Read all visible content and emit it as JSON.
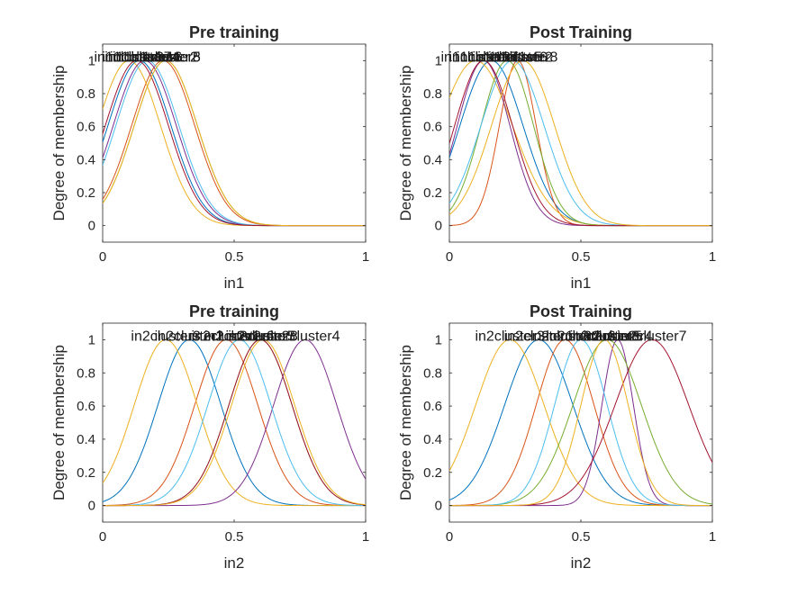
{
  "colors": [
    "#0072BD",
    "#D95319",
    "#EDB120",
    "#7E2F8E",
    "#77AC30",
    "#4DBEEE",
    "#A2142F"
  ],
  "chart_data": [
    {
      "type": "line",
      "title": "Pre training",
      "xlabel": "in1",
      "ylabel": "Degree of membership",
      "xlim": [
        0,
        1
      ],
      "ylim": [
        -0.1,
        1.1
      ],
      "xticks": [
        0,
        0.5,
        1
      ],
      "xtick_labels": [
        "0",
        "0.5",
        "1"
      ],
      "yticks": [
        0,
        0.2,
        0.4,
        0.6,
        0.8,
        1
      ],
      "ytick_labels": [
        "0",
        "0.2",
        "0.4",
        "0.6",
        "0.8",
        "1"
      ],
      "grid": false,
      "series": [
        {
          "name": "in1cluster1",
          "mf": "gaussmf",
          "center": 0.14,
          "sigma": 0.12,
          "color": "#0072BD"
        },
        {
          "name": "in1cluster2",
          "mf": "gaussmf",
          "center": 0.23,
          "sigma": 0.12,
          "color": "#D95319"
        },
        {
          "name": "in1cluster3",
          "mf": "gaussmf",
          "center": 0.1,
          "sigma": 0.12,
          "color": "#EDB120"
        },
        {
          "name": "in1cluster4",
          "mf": "gaussmf",
          "center": 0.16,
          "sigma": 0.12,
          "color": "#7E2F8E"
        },
        {
          "name": "in1cluster5",
          "mf": "gaussmf",
          "center": 0.24,
          "sigma": 0.12,
          "color": "#77AC30"
        },
        {
          "name": "in1cluster6",
          "mf": "gaussmf",
          "center": 0.17,
          "sigma": 0.12,
          "color": "#4DBEEE"
        },
        {
          "name": "in1cluster7",
          "mf": "gaussmf",
          "center": 0.13,
          "sigma": 0.12,
          "color": "#A2142F"
        },
        {
          "name": "in1cluster8",
          "mf": "gaussmf",
          "center": 0.24,
          "sigma": 0.12,
          "color": "#EDB120"
        }
      ]
    },
    {
      "type": "line",
      "title": "Post Training",
      "xlabel": "in1",
      "ylabel": "Degree of membership",
      "xlim": [
        0,
        1
      ],
      "ylim": [
        -0.1,
        1.1
      ],
      "xticks": [
        0,
        0.5,
        1
      ],
      "xtick_labels": [
        "0",
        "0.5",
        "1"
      ],
      "yticks": [
        0,
        0.2,
        0.4,
        0.6,
        0.8,
        1
      ],
      "ytick_labels": [
        "0",
        "0.2",
        "0.4",
        "0.6",
        "0.8",
        "1"
      ],
      "grid": false,
      "series": [
        {
          "name": "in1cluster1",
          "mf": "gaussmf",
          "center": 0.16,
          "sigma": 0.12,
          "color": "#0072BD"
        },
        {
          "name": "in1cluster2",
          "mf": "gaussmf",
          "center": 0.26,
          "sigma": 0.07,
          "color": "#D95319"
        },
        {
          "name": "in1cluster3",
          "mf": "gaussmf",
          "center": 0.1,
          "sigma": 0.14,
          "color": "#EDB120"
        },
        {
          "name": "in1cluster4",
          "mf": "gaussmf",
          "center": 0.13,
          "sigma": 0.1,
          "color": "#7E2F8E"
        },
        {
          "name": "in1cluster5",
          "mf": "gaussmf",
          "center": 0.22,
          "sigma": 0.1,
          "color": "#77AC30"
        },
        {
          "name": "in1cluster6",
          "mf": "gaussmf",
          "center": 0.24,
          "sigma": 0.12,
          "color": "#4DBEEE"
        },
        {
          "name": "in1cluster7",
          "mf": "gaussmf",
          "center": 0.13,
          "sigma": 0.11,
          "color": "#A2142F"
        },
        {
          "name": "in1cluster8",
          "mf": "gaussmf",
          "center": 0.28,
          "sigma": 0.12,
          "color": "#EDB120"
        }
      ]
    },
    {
      "type": "line",
      "title": "Pre training",
      "xlabel": "in2",
      "ylabel": "Degree of membership",
      "xlim": [
        0,
        1
      ],
      "ylim": [
        -0.1,
        1.1
      ],
      "xticks": [
        0,
        0.5,
        1
      ],
      "xtick_labels": [
        "0",
        "0.5",
        "1"
      ],
      "yticks": [
        0,
        0.2,
        0.4,
        0.6,
        0.8,
        1
      ],
      "ytick_labels": [
        "0",
        "0.2",
        "0.4",
        "0.6",
        "0.8",
        "1"
      ],
      "grid": false,
      "series": [
        {
          "name": "in2cluster1",
          "mf": "gaussmf",
          "center": 0.33,
          "sigma": 0.12,
          "color": "#0072BD"
        },
        {
          "name": "in2cluster2",
          "mf": "gaussmf",
          "center": 0.47,
          "sigma": 0.12,
          "color": "#D95319"
        },
        {
          "name": "in2cluster3",
          "mf": "gaussmf",
          "center": 0.24,
          "sigma": 0.12,
          "color": "#EDB120"
        },
        {
          "name": "in2cluster4",
          "mf": "gaussmf",
          "center": 0.77,
          "sigma": 0.12,
          "color": "#7E2F8E"
        },
        {
          "name": "in2cluster5",
          "mf": "gaussmf",
          "center": 0.6,
          "sigma": 0.12,
          "color": "#77AC30"
        },
        {
          "name": "in2cluster6",
          "mf": "gaussmf",
          "center": 0.52,
          "sigma": 0.12,
          "color": "#4DBEEE"
        },
        {
          "name": "in2cluster7",
          "mf": "gaussmf",
          "center": 0.6,
          "sigma": 0.12,
          "color": "#A2142F"
        },
        {
          "name": "in2cluster8",
          "mf": "gaussmf",
          "center": 0.61,
          "sigma": 0.12,
          "color": "#EDB120"
        }
      ]
    },
    {
      "type": "line",
      "title": "Post Training",
      "xlabel": "in2",
      "ylabel": "Degree of membership",
      "xlim": [
        0,
        1
      ],
      "ylim": [
        -0.1,
        1.1
      ],
      "xticks": [
        0,
        0.5,
        1
      ],
      "xtick_labels": [
        "0",
        "0.5",
        "1"
      ],
      "yticks": [
        0,
        0.2,
        0.4,
        0.6,
        0.8,
        1
      ],
      "ytick_labels": [
        "0",
        "0.2",
        "0.4",
        "0.6",
        "0.8",
        "1"
      ],
      "grid": false,
      "series": [
        {
          "name": "in2cluster1",
          "mf": "gaussmf",
          "center": 0.34,
          "sigma": 0.13,
          "color": "#0072BD"
        },
        {
          "name": "in2cluster2",
          "mf": "gaussmf",
          "center": 0.44,
          "sigma": 0.11,
          "color": "#D95319"
        },
        {
          "name": "in2cluster3",
          "mf": "gaussmf",
          "center": 0.23,
          "sigma": 0.13,
          "color": "#EDB120"
        },
        {
          "name": "in2cluster4",
          "mf": "gaussmf",
          "center": 0.64,
          "sigma": 0.06,
          "color": "#7E2F8E"
        },
        {
          "name": "in2cluster5",
          "mf": "gaussmf",
          "center": 0.6,
          "sigma": 0.13,
          "color": "#77AC30"
        },
        {
          "name": "in2cluster6",
          "mf": "gaussmf",
          "center": 0.5,
          "sigma": 0.1,
          "color": "#4DBEEE"
        },
        {
          "name": "in2cluster7",
          "mf": "gaussmf",
          "center": 0.77,
          "sigma": 0.14,
          "color": "#A2142F"
        },
        {
          "name": "in2cluster8",
          "mf": "gaussmf",
          "center": 0.59,
          "sigma": 0.09,
          "color": "#EDB120"
        }
      ]
    }
  ]
}
